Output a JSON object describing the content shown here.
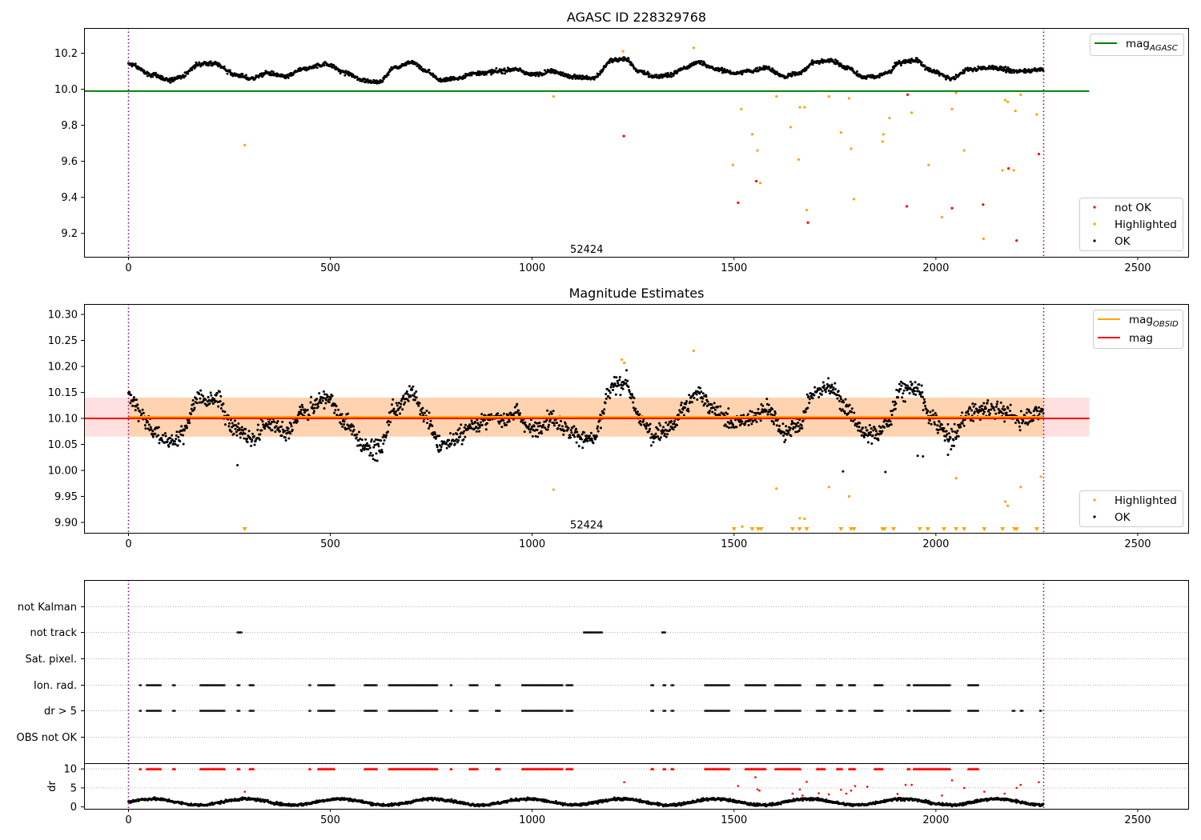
{
  "chart_data": [
    {
      "type": "scatter",
      "title": "AGASC ID 228329768",
      "xlim": [
        -110,
        2625
      ],
      "ylim": [
        9.07,
        10.34
      ],
      "xticks": [
        0,
        500,
        1000,
        1500,
        2000,
        2500
      ],
      "yticks": [
        9.2,
        9.4,
        9.6,
        9.8,
        10.0,
        10.2
      ],
      "ytick_decimals": 1,
      "obs_start": 0,
      "obs_end": 2267,
      "annotation": {
        "text": "52424",
        "x": 1135,
        "y": 9.11
      },
      "mag_agasc": {
        "value": 9.99,
        "x_range": [
          -110,
          2380
        ],
        "color": "#008000"
      },
      "legend_upper": [
        {
          "label": "mag",
          "sub": "AGASC",
          "color": "#008000",
          "kind": "line"
        }
      ],
      "legend_lower": [
        {
          "label": "not OK",
          "color": "#ff0000",
          "kind": "dot"
        },
        {
          "label": "Highlighted",
          "color": "#ffa500",
          "kind": "dot"
        },
        {
          "label": "OK",
          "color": "#000000",
          "kind": "dot"
        }
      ],
      "ok_series": {
        "mean": 10.1,
        "x_range": [
          0,
          2267
        ],
        "waves": [
          [
            0,
            10.14
          ],
          [
            60,
            10.08
          ],
          [
            100,
            10.05
          ],
          [
            130,
            10.07
          ],
          [
            175,
            10.14
          ],
          [
            215,
            10.14
          ],
          [
            265,
            10.08
          ],
          [
            305,
            10.06
          ],
          [
            345,
            10.09
          ],
          [
            390,
            10.07
          ],
          [
            430,
            10.11
          ],
          [
            490,
            10.14
          ],
          [
            540,
            10.09
          ],
          [
            580,
            10.05
          ],
          [
            620,
            10.04
          ],
          [
            660,
            10.12
          ],
          [
            700,
            10.15
          ],
          [
            740,
            10.1
          ],
          [
            770,
            10.05
          ],
          [
            810,
            10.06
          ],
          [
            860,
            10.09
          ],
          [
            920,
            10.1
          ],
          [
            960,
            10.11
          ],
          [
            1000,
            10.08
          ],
          [
            1050,
            10.1
          ],
          [
            1100,
            10.07
          ],
          [
            1150,
            10.06
          ],
          [
            1200,
            10.16
          ],
          [
            1230,
            10.17
          ],
          [
            1265,
            10.1
          ],
          [
            1300,
            10.07
          ],
          [
            1340,
            10.08
          ],
          [
            1380,
            10.12
          ],
          [
            1410,
            10.15
          ],
          [
            1460,
            10.11
          ],
          [
            1500,
            10.09
          ],
          [
            1540,
            10.1
          ],
          [
            1580,
            10.12
          ],
          [
            1625,
            10.07
          ],
          [
            1660,
            10.09
          ],
          [
            1700,
            10.15
          ],
          [
            1740,
            10.16
          ],
          [
            1780,
            10.12
          ],
          [
            1820,
            10.07
          ],
          [
            1850,
            10.07
          ],
          [
            1880,
            10.09
          ],
          [
            1910,
            10.15
          ],
          [
            1950,
            10.16
          ],
          [
            1990,
            10.1
          ],
          [
            2040,
            10.06
          ],
          [
            2080,
            10.11
          ],
          [
            2140,
            10.12
          ],
          [
            2200,
            10.1
          ],
          [
            2267,
            10.11
          ]
        ]
      },
      "highlighted_points": [
        [
          288,
          9.69
        ],
        [
          1053,
          9.96
        ],
        [
          1225,
          10.21
        ],
        [
          1400,
          10.23
        ],
        [
          1497,
          9.58
        ],
        [
          1518,
          9.89
        ],
        [
          1545,
          9.75
        ],
        [
          1558,
          9.66
        ],
        [
          1565,
          9.48
        ],
        [
          1605,
          9.96
        ],
        [
          1640,
          9.79
        ],
        [
          1660,
          9.61
        ],
        [
          1663,
          9.9
        ],
        [
          1675,
          9.9
        ],
        [
          1680,
          9.33
        ],
        [
          1735,
          9.96
        ],
        [
          1765,
          9.76
        ],
        [
          1785,
          9.95
        ],
        [
          1790,
          9.67
        ],
        [
          1797,
          9.39
        ],
        [
          1868,
          9.71
        ],
        [
          1870,
          9.75
        ],
        [
          1885,
          9.84
        ],
        [
          1940,
          9.87
        ],
        [
          1982,
          9.58
        ],
        [
          2015,
          9.29
        ],
        [
          2040,
          9.89
        ],
        [
          2050,
          9.98
        ],
        [
          2070,
          9.66
        ],
        [
          2118,
          9.17
        ],
        [
          2165,
          9.55
        ],
        [
          2172,
          9.94
        ],
        [
          2178,
          9.93
        ],
        [
          2193,
          9.55
        ],
        [
          2197,
          9.88
        ],
        [
          2210,
          9.97
        ],
        [
          2250,
          9.86
        ]
      ],
      "not_ok_points": [
        [
          1227,
          9.74
        ],
        [
          1510,
          9.37
        ],
        [
          1555,
          9.49
        ],
        [
          1683,
          9.26
        ],
        [
          1928,
          9.35
        ],
        [
          1930,
          9.97
        ],
        [
          2040,
          9.34
        ],
        [
          2117,
          9.36
        ],
        [
          2180,
          9.56
        ],
        [
          2200,
          9.16
        ],
        [
          2255,
          9.64
        ]
      ]
    },
    {
      "type": "scatter",
      "title": "Magnitude Estimates",
      "xlim": [
        -110,
        2625
      ],
      "ylim": [
        9.88,
        10.32
      ],
      "xticks": [
        0,
        500,
        1000,
        1500,
        2000,
        2500
      ],
      "yticks": [
        9.9,
        9.95,
        10.0,
        10.05,
        10.1,
        10.15,
        10.2,
        10.25,
        10.3
      ],
      "ytick_decimals": 2,
      "obs_start": 0,
      "obs_end": 2267,
      "annotation": {
        "text": "52424",
        "x": 1135,
        "y": 9.895
      },
      "mag": {
        "value": 10.1,
        "band": [
          10.065,
          10.14
        ],
        "x_range": [
          -110,
          2380
        ],
        "color": "#ff0000"
      },
      "mag_obsid": {
        "value": 10.103,
        "band": [
          10.065,
          10.14
        ],
        "x_range": [
          0,
          2267
        ],
        "color": "#ffa500"
      },
      "legend_upper": [
        {
          "label": "mag",
          "sub": "OBSID",
          "color": "#ffa500",
          "kind": "line"
        },
        {
          "label": "mag",
          "sub": "",
          "color": "#ff0000",
          "kind": "line"
        }
      ],
      "legend_lower": [
        {
          "label": "Highlighted",
          "color": "#ffa500",
          "kind": "dot"
        },
        {
          "label": "OK",
          "color": "#000000",
          "kind": "dot"
        }
      ],
      "highlighted_points": [
        [
          1053,
          9.963
        ],
        [
          1222,
          10.213
        ],
        [
          1228,
          10.207
        ],
        [
          1400,
          10.23
        ],
        [
          1605,
          9.965
        ],
        [
          1735,
          9.968
        ],
        [
          1785,
          9.95
        ],
        [
          2050,
          9.985
        ],
        [
          2172,
          9.94
        ],
        [
          2178,
          9.932
        ],
        [
          2210,
          9.968
        ],
        [
          2260,
          9.988
        ],
        [
          1663,
          9.908
        ],
        [
          1675,
          9.907
        ],
        [
          1520,
          9.892
        ]
      ],
      "below_markers": [
        288,
        1500,
        1545,
        1560,
        1567,
        1645,
        1662,
        1680,
        1765,
        1790,
        1797,
        1868,
        1873,
        1895,
        1960,
        1980,
        2020,
        2050,
        2070,
        2120,
        2165,
        2195,
        2200,
        2250
      ],
      "outlier_ok_points": [
        [
          1770,
          9.998
        ],
        [
          1875,
          9.997
        ],
        [
          270,
          10.01
        ],
        [
          1955,
          10.028
        ],
        [
          1968,
          10.027
        ],
        [
          2030,
          10.03
        ]
      ]
    },
    {
      "type": "scatter",
      "title": "",
      "xlim": [
        -110,
        2625
      ],
      "xticks": [
        0,
        500,
        1000,
        1500,
        2000,
        2500
      ],
      "obs_start": 0,
      "obs_end": 2267,
      "flag_rows": [
        "not Kalman",
        "not track",
        "Sat. pixel.",
        "Ion. rad.",
        "dr > 5",
        "OBS not OK"
      ],
      "flag_segments": {
        "not track": [
          [
            270,
            280
          ],
          [
            1128,
            1175
          ],
          [
            1322,
            1330
          ]
        ],
        "ion_dr": [
          [
            28,
            32
          ],
          [
            45,
            80
          ],
          [
            110,
            115
          ],
          [
            178,
            240
          ],
          [
            270,
            275
          ],
          [
            300,
            310
          ],
          [
            448,
            452
          ],
          [
            470,
            510
          ],
          [
            585,
            615
          ],
          [
            645,
            765
          ],
          [
            798,
            802
          ],
          [
            845,
            865
          ],
          [
            910,
            920
          ],
          [
            975,
            1075
          ],
          [
            1085,
            1100
          ],
          [
            1295,
            1300
          ],
          [
            1325,
            1330
          ],
          [
            1345,
            1350
          ],
          [
            1428,
            1490
          ],
          [
            1528,
            1580
          ],
          [
            1602,
            1665
          ],
          [
            1705,
            1725
          ],
          [
            1755,
            1768
          ],
          [
            1785,
            1800
          ],
          [
            1848,
            1868
          ],
          [
            1930,
            1935
          ],
          [
            1945,
            2035
          ],
          [
            2080,
            2105
          ]
        ],
        "dr_extra": [
          [
            2190,
            2195
          ],
          [
            2210,
            2215
          ],
          [
            2258,
            2262
          ]
        ]
      },
      "dr_axis": {
        "label": "dr",
        "ylim": [
          -0.5,
          11.5
        ],
        "yticks": [
          0,
          5,
          10
        ],
        "threshold": 10
      },
      "dr_outliers": [
        [
          288,
          4.0
        ],
        [
          1228,
          6.5
        ],
        [
          1510,
          5.5
        ],
        [
          1553,
          7.8
        ],
        [
          1558,
          4.6
        ],
        [
          1563,
          4.3
        ],
        [
          1645,
          3.5
        ],
        [
          1663,
          4.6
        ],
        [
          1670,
          3.0
        ],
        [
          1680,
          6.6
        ],
        [
          1710,
          3.6
        ],
        [
          1735,
          3.3
        ],
        [
          1765,
          4.5
        ],
        [
          1778,
          3.5
        ],
        [
          1790,
          4.3
        ],
        [
          1800,
          5.5
        ],
        [
          1830,
          5.3
        ],
        [
          1905,
          3.4
        ],
        [
          1925,
          5.8
        ],
        [
          1940,
          5.8
        ],
        [
          2015,
          3.0
        ],
        [
          2040,
          7.0
        ],
        [
          2070,
          5.0
        ],
        [
          2120,
          4.0
        ],
        [
          2170,
          3.5
        ],
        [
          2200,
          5.0
        ],
        [
          2210,
          5.8
        ],
        [
          2255,
          6.5
        ]
      ]
    }
  ]
}
